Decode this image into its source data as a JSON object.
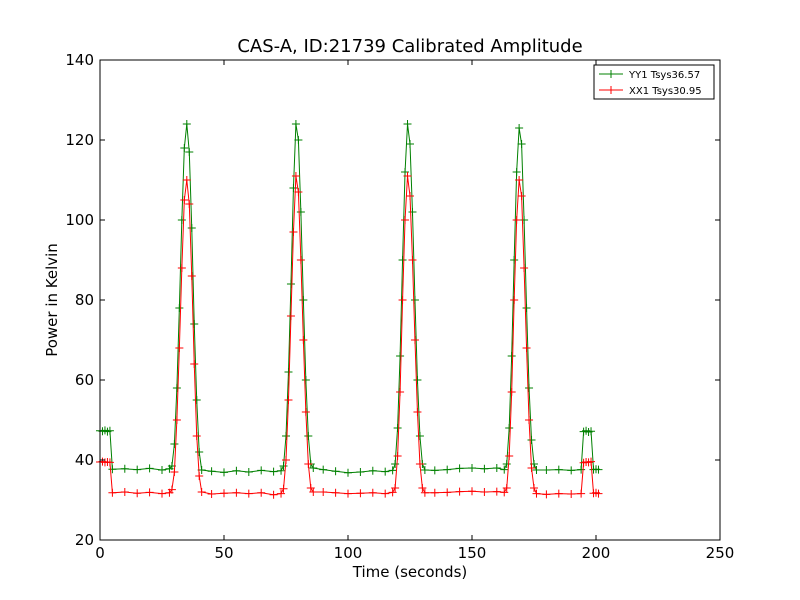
{
  "chart_data": {
    "type": "line",
    "title": "CAS-A, ID:21739 Calibrated Amplitude",
    "xlabel": "Time (seconds)",
    "ylabel": "Power in Kelvin",
    "xlim": [
      0,
      250
    ],
    "ylim": [
      20,
      140
    ],
    "xticks": [
      0,
      50,
      100,
      150,
      200,
      250
    ],
    "yticks": [
      20,
      40,
      60,
      80,
      100,
      120,
      140
    ],
    "grid": false,
    "legend_position": "top-right",
    "marker": "+",
    "series": [
      {
        "name": "YY1 Tsys36.57",
        "color": "#008000",
        "points": [
          [
            0,
            47.3
          ],
          [
            1,
            47.2
          ],
          [
            2,
            47.4
          ],
          [
            3,
            47.1
          ],
          [
            4,
            47.3
          ],
          [
            5,
            37.7
          ],
          [
            10,
            37.8
          ],
          [
            15,
            37.6
          ],
          [
            20,
            37.9
          ],
          [
            25,
            37.5
          ],
          [
            28,
            37.8
          ],
          [
            29,
            38.5
          ],
          [
            30,
            44
          ],
          [
            31,
            58
          ],
          [
            32,
            78
          ],
          [
            33,
            100
          ],
          [
            34,
            118
          ],
          [
            35,
            124
          ],
          [
            36,
            117
          ],
          [
            37,
            98
          ],
          [
            38,
            74
          ],
          [
            39,
            55
          ],
          [
            40,
            42
          ],
          [
            41,
            37.5
          ],
          [
            45,
            37.2
          ],
          [
            50,
            36.9
          ],
          [
            55,
            37.3
          ],
          [
            60,
            37.0
          ],
          [
            65,
            37.4
          ],
          [
            70,
            37.1
          ],
          [
            73,
            37.3
          ],
          [
            74,
            38.5
          ],
          [
            75,
            46
          ],
          [
            76,
            62
          ],
          [
            77,
            84
          ],
          [
            78,
            108
          ],
          [
            79,
            124
          ],
          [
            80,
            120
          ],
          [
            81,
            102
          ],
          [
            82,
            80
          ],
          [
            83,
            60
          ],
          [
            84,
            46
          ],
          [
            85,
            39
          ],
          [
            86,
            38
          ],
          [
            90,
            37.6
          ],
          [
            95,
            37.2
          ],
          [
            100,
            36.8
          ],
          [
            105,
            37.0
          ],
          [
            110,
            37.3
          ],
          [
            115,
            37.1
          ],
          [
            118,
            37.4
          ],
          [
            119,
            39
          ],
          [
            120,
            48
          ],
          [
            121,
            66
          ],
          [
            122,
            90
          ],
          [
            123,
            112
          ],
          [
            124,
            124
          ],
          [
            125,
            119
          ],
          [
            126,
            102
          ],
          [
            127,
            80
          ],
          [
            128,
            60
          ],
          [
            129,
            46
          ],
          [
            130,
            39
          ],
          [
            131,
            37.5
          ],
          [
            135,
            37.4
          ],
          [
            140,
            37.6
          ],
          [
            145,
            37.9
          ],
          [
            150,
            38.0
          ],
          [
            155,
            37.8
          ],
          [
            160,
            38.0
          ],
          [
            163,
            37.6
          ],
          [
            164,
            39
          ],
          [
            165,
            48
          ],
          [
            166,
            66
          ],
          [
            167,
            90
          ],
          [
            168,
            112
          ],
          [
            169,
            123
          ],
          [
            170,
            119
          ],
          [
            171,
            100
          ],
          [
            172,
            78
          ],
          [
            173,
            58
          ],
          [
            174,
            45
          ],
          [
            175,
            39
          ],
          [
            176,
            37.5
          ],
          [
            180,
            37.5
          ],
          [
            185,
            37.6
          ],
          [
            190,
            37.4
          ],
          [
            194,
            37.6
          ],
          [
            195,
            47.1
          ],
          [
            196,
            47.3
          ],
          [
            197,
            47.0
          ],
          [
            198,
            47.2
          ],
          [
            199,
            37.6
          ],
          [
            200,
            37.7
          ],
          [
            201,
            37.6
          ]
        ]
      },
      {
        "name": "XX1 Tsys30.95",
        "color": "#ff0000",
        "points": [
          [
            0,
            39.5
          ],
          [
            1,
            39.6
          ],
          [
            2,
            39.4
          ],
          [
            3,
            39.5
          ],
          [
            4,
            39.4
          ],
          [
            5,
            31.8
          ],
          [
            10,
            32.0
          ],
          [
            15,
            31.7
          ],
          [
            20,
            31.9
          ],
          [
            25,
            31.6
          ],
          [
            28,
            31.8
          ],
          [
            29,
            32.6
          ],
          [
            30,
            37
          ],
          [
            31,
            50
          ],
          [
            32,
            68
          ],
          [
            33,
            88
          ],
          [
            34,
            105
          ],
          [
            35,
            110
          ],
          [
            36,
            104
          ],
          [
            37,
            86
          ],
          [
            38,
            64
          ],
          [
            39,
            46
          ],
          [
            40,
            36
          ],
          [
            41,
            32
          ],
          [
            45,
            31.5
          ],
          [
            50,
            31.7
          ],
          [
            55,
            31.8
          ],
          [
            60,
            31.6
          ],
          [
            65,
            31.8
          ],
          [
            70,
            31.3
          ],
          [
            73,
            31.6
          ],
          [
            74,
            32.8
          ],
          [
            75,
            40
          ],
          [
            76,
            55
          ],
          [
            77,
            76
          ],
          [
            78,
            97
          ],
          [
            79,
            111
          ],
          [
            80,
            107
          ],
          [
            81,
            90
          ],
          [
            82,
            70
          ],
          [
            83,
            52
          ],
          [
            84,
            39
          ],
          [
            85,
            33
          ],
          [
            86,
            32
          ],
          [
            90,
            32.0
          ],
          [
            95,
            31.8
          ],
          [
            100,
            31.6
          ],
          [
            105,
            31.7
          ],
          [
            110,
            31.8
          ],
          [
            115,
            31.6
          ],
          [
            118,
            31.9
          ],
          [
            119,
            33
          ],
          [
            120,
            41
          ],
          [
            121,
            57
          ],
          [
            122,
            80
          ],
          [
            123,
            100
          ],
          [
            124,
            111
          ],
          [
            125,
            106
          ],
          [
            126,
            90
          ],
          [
            127,
            70
          ],
          [
            128,
            52
          ],
          [
            129,
            39
          ],
          [
            130,
            33
          ],
          [
            131,
            31.8
          ],
          [
            135,
            31.8
          ],
          [
            140,
            31.9
          ],
          [
            145,
            32.1
          ],
          [
            150,
            32.2
          ],
          [
            155,
            32.0
          ],
          [
            160,
            32.1
          ],
          [
            163,
            31.9
          ],
          [
            164,
            33
          ],
          [
            165,
            41
          ],
          [
            166,
            57
          ],
          [
            167,
            80
          ],
          [
            168,
            100
          ],
          [
            169,
            110
          ],
          [
            170,
            106
          ],
          [
            171,
            88
          ],
          [
            172,
            68
          ],
          [
            173,
            50
          ],
          [
            174,
            38
          ],
          [
            175,
            33
          ],
          [
            176,
            31.6
          ],
          [
            180,
            31.4
          ],
          [
            185,
            31.6
          ],
          [
            190,
            31.5
          ],
          [
            194,
            31.6
          ],
          [
            195,
            39.3
          ],
          [
            196,
            39.5
          ],
          [
            197,
            39.4
          ],
          [
            198,
            39.6
          ],
          [
            199,
            31.7
          ],
          [
            200,
            31.8
          ],
          [
            201,
            31.6
          ]
        ]
      }
    ]
  }
}
